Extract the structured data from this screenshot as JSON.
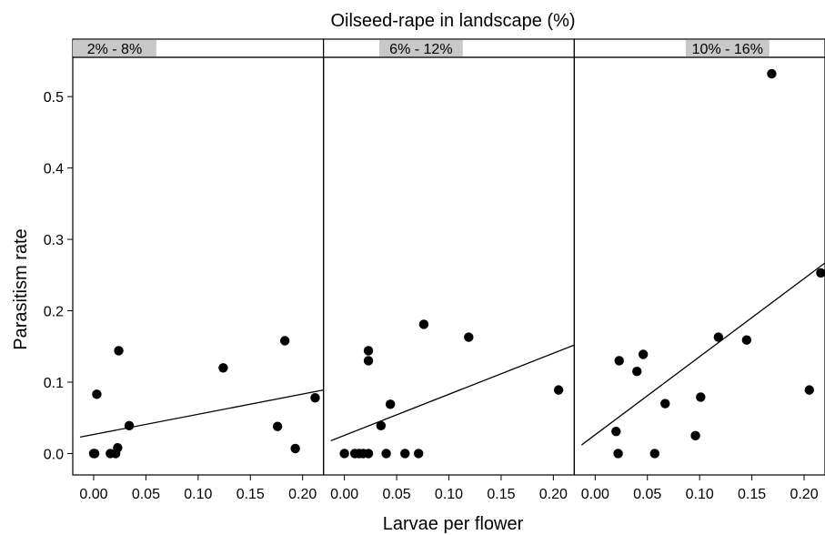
{
  "chart_data": {
    "type": "scatter",
    "title": "Oilseed-rape in landscape (%)",
    "xlabel": "Larvae per flower",
    "ylabel": "Parasitism rate",
    "xlim": [
      -0.02,
      0.22
    ],
    "ylim": [
      -0.03,
      0.555
    ],
    "x_ticks": [
      "0.00",
      "0.05",
      "0.10",
      "0.15",
      "0.20"
    ],
    "x_tick_values": [
      0.0,
      0.05,
      0.1,
      0.15,
      0.2
    ],
    "y_ticks": [
      "0.0",
      "0.1",
      "0.2",
      "0.3",
      "0.4",
      "0.5"
    ],
    "y_tick_values": [
      0.0,
      0.1,
      0.2,
      0.3,
      0.4,
      0.5
    ],
    "strip_color": "#c8c8c8",
    "point_color": "#000000",
    "panels": [
      {
        "label": "2% - 8%",
        "range": [
          0.02,
          0.08
        ],
        "points": [
          [
            0.0,
            0.0
          ],
          [
            0.001,
            0.0
          ],
          [
            0.003,
            0.083
          ],
          [
            0.016,
            0.0
          ],
          [
            0.021,
            0.0
          ],
          [
            0.023,
            0.008
          ],
          [
            0.024,
            0.144
          ],
          [
            0.034,
            0.039
          ],
          [
            0.124,
            0.12
          ],
          [
            0.176,
            0.038
          ],
          [
            0.183,
            0.158
          ],
          [
            0.193,
            0.007
          ],
          [
            0.212,
            0.078
          ]
        ],
        "fit": {
          "x0": -0.013,
          "y0": 0.023,
          "x1": 0.22,
          "y1": 0.089
        }
      },
      {
        "label": "6% - 12%",
        "range": [
          0.06,
          0.12
        ],
        "points": [
          [
            0.0,
            0.0
          ],
          [
            0.01,
            0.0
          ],
          [
            0.014,
            0.0
          ],
          [
            0.018,
            0.0
          ],
          [
            0.023,
            0.0
          ],
          [
            0.023,
            0.144
          ],
          [
            0.023,
            0.13
          ],
          [
            0.035,
            0.039
          ],
          [
            0.04,
            0.0
          ],
          [
            0.044,
            0.069
          ],
          [
            0.058,
            0.0
          ],
          [
            0.071,
            0.0
          ],
          [
            0.076,
            0.181
          ],
          [
            0.119,
            0.163
          ],
          [
            0.205,
            0.089
          ]
        ],
        "fit": {
          "x0": -0.013,
          "y0": 0.018,
          "x1": 0.22,
          "y1": 0.152
        }
      },
      {
        "label": "10% - 16%",
        "range": [
          0.1,
          0.16
        ],
        "points": [
          [
            0.02,
            0.031
          ],
          [
            0.022,
            0.0
          ],
          [
            0.023,
            0.13
          ],
          [
            0.04,
            0.115
          ],
          [
            0.046,
            0.139
          ],
          [
            0.057,
            0.0
          ],
          [
            0.067,
            0.07
          ],
          [
            0.096,
            0.025
          ],
          [
            0.101,
            0.079
          ],
          [
            0.118,
            0.163
          ],
          [
            0.145,
            0.159
          ],
          [
            0.169,
            0.532
          ],
          [
            0.205,
            0.089
          ],
          [
            0.216,
            0.253
          ]
        ],
        "fit": {
          "x0": -0.013,
          "y0": 0.012,
          "x1": 0.22,
          "y1": 0.267
        }
      }
    ]
  }
}
